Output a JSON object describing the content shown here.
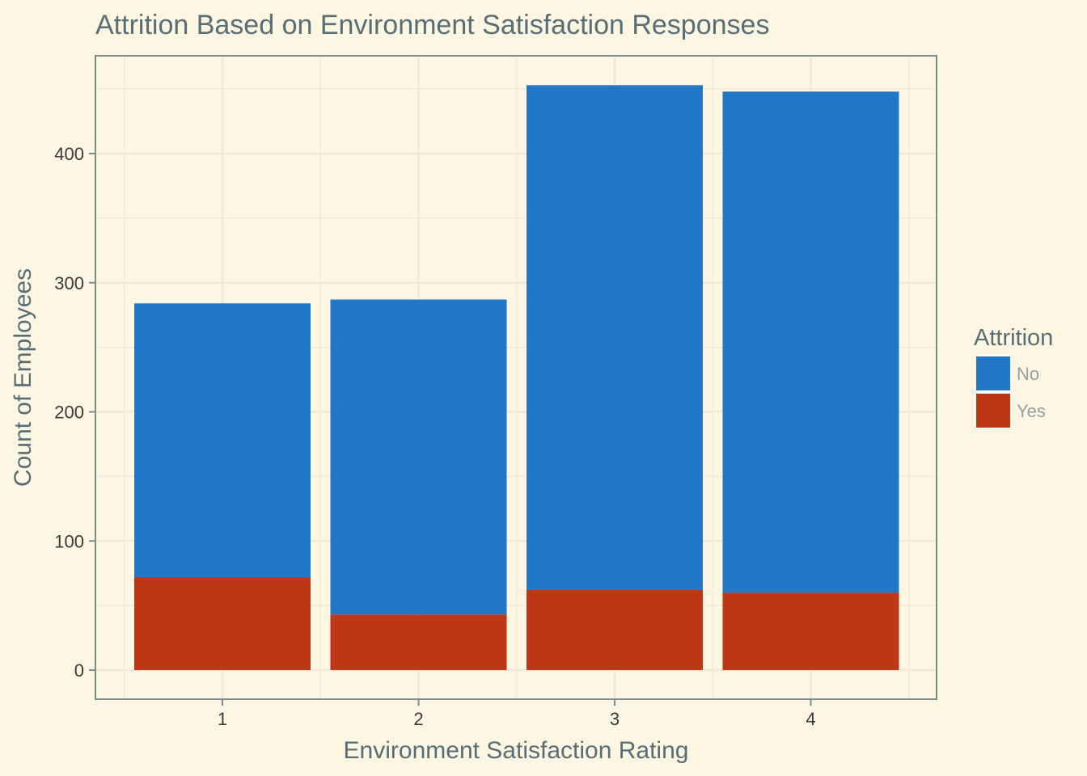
{
  "chart_data": {
    "type": "bar",
    "stacked": true,
    "title": "Attrition Based on Environment Satisfaction Responses",
    "xlabel": "Environment Satisfaction Rating",
    "ylabel": "Count of Employees",
    "categories": [
      "1",
      "2",
      "3",
      "4"
    ],
    "ylim": [
      0,
      475
    ],
    "yticks": [
      0,
      100,
      200,
      300,
      400
    ],
    "grid": true,
    "legend": {
      "title": "Attrition",
      "position": "right"
    },
    "series": [
      {
        "name": "No",
        "values": [
          212,
          244,
          391,
          388
        ],
        "color": "#2277c8"
      },
      {
        "name": "Yes",
        "values": [
          72,
          43,
          62,
          60
        ],
        "color": "#bd3615"
      }
    ],
    "colors": {
      "background": "#fdf6e3",
      "grid": "#eee8d5",
      "border": "#7f8c8d",
      "title_text": "#586e75",
      "tick_text": "#3a3a3a",
      "legend_label_text": "#93a1a1"
    }
  }
}
